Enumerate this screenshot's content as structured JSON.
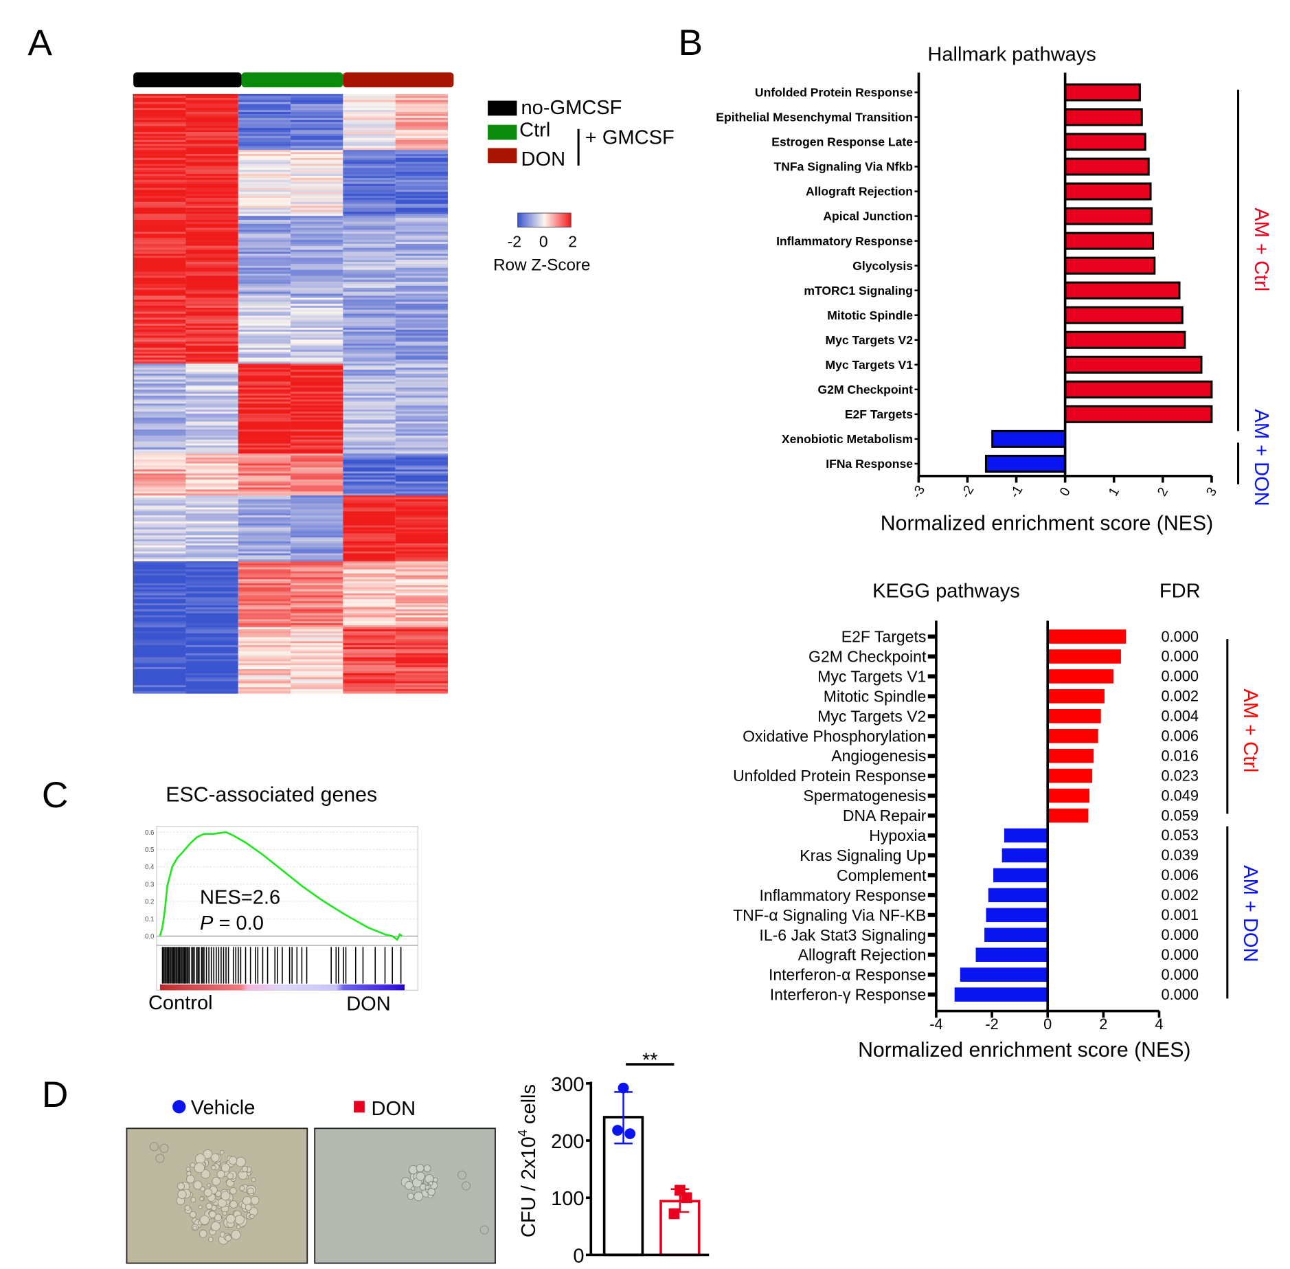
{
  "panels": {
    "a": "A",
    "b": "B",
    "c": "C",
    "d": "D"
  },
  "colors": {
    "red": "#e8001e",
    "blue": "#0a14f0",
    "black": "#000000",
    "green": "#0b8a0b",
    "darkred": "#a81400",
    "gsea_line": "#22e622"
  },
  "legend_a": {
    "groups": [
      {
        "label": "no-GMCSF",
        "color": "#000000"
      },
      {
        "label": "Ctrl",
        "color": "#0b8a0b"
      },
      {
        "label": "DON",
        "color": "#a81400"
      }
    ],
    "bracket_label": "+ GMCSF",
    "colorbar_ticks": [
      "-2",
      "0",
      "2"
    ],
    "colorbar_title": "Row Z-Score"
  },
  "chart_data": [
    {
      "type": "heatmap",
      "title": "",
      "columns": [
        "no-GMCSF",
        "no-GMCSF",
        "Ctrl",
        "Ctrl",
        "DON",
        "DON"
      ],
      "value_range": [
        -2,
        2
      ],
      "clusters": [
        {
          "rows": 28,
          "z": [
            2,
            2,
            -1.5,
            -1.5,
            0,
            0.6
          ]
        },
        {
          "rows": 33,
          "z": [
            2,
            2,
            0,
            0,
            -1.6,
            -1.6
          ]
        },
        {
          "rows": 40,
          "z": [
            2,
            2,
            -1,
            -1,
            -0.8,
            -0.8
          ]
        },
        {
          "rows": 34,
          "z": [
            1.8,
            1.8,
            -0.5,
            -0.5,
            -1,
            -1.1
          ]
        },
        {
          "rows": 45,
          "z": [
            -0.8,
            -0.5,
            2,
            2,
            -0.8,
            -0.8
          ]
        },
        {
          "rows": 21,
          "z": [
            0.6,
            0.5,
            1.1,
            1.1,
            -1.6,
            -1.6
          ]
        },
        {
          "rows": 33,
          "z": [
            -0.5,
            -0.5,
            -1,
            -1,
            2,
            2
          ]
        },
        {
          "rows": 33,
          "z": [
            -2,
            -2,
            1.1,
            1.1,
            0.5,
            0.5
          ]
        },
        {
          "rows": 33,
          "z": [
            -2,
            -2,
            0.3,
            0.3,
            1.6,
            1.6
          ]
        }
      ]
    },
    {
      "type": "bar",
      "orientation": "horizontal",
      "title": "Hallmark pathways",
      "xlabel": "Normalized enrichment score (NES)",
      "xlim": [
        -3,
        3
      ],
      "ticks": [
        -3,
        -2,
        -1,
        0,
        1,
        2,
        3
      ],
      "tick_labels": [
        "-3",
        "-2",
        "-1",
        "0",
        "1",
        "2",
        "3"
      ],
      "categories": [
        "Unfolded Protein Response",
        "Epithelial Mesenchymal Transition",
        "Estrogen Response Late",
        "TNFa Signaling Via Nfkb",
        "Allograft Rejection",
        "Apical Junction",
        "Inflammatory Response",
        "Glycolysis",
        "mTORC1 Signaling",
        "Mitotic Spindle",
        "Myc Targets V2",
        "Myc Targets V1",
        "G2M Checkpoint",
        "E2F Targets",
        "Xenobiotic Metabolism",
        "IFNa Response"
      ],
      "values": [
        1.53,
        1.57,
        1.64,
        1.71,
        1.75,
        1.77,
        1.8,
        1.83,
        2.34,
        2.4,
        2.45,
        2.79,
        3.0,
        3.0,
        -1.49,
        -1.62
      ],
      "groups": [
        {
          "label": "AM + Ctrl",
          "color": "#e8001e"
        },
        {
          "label": "AM + DON",
          "color": "#0a14f0"
        }
      ]
    },
    {
      "type": "bar",
      "orientation": "horizontal",
      "title": "KEGG pathways",
      "fdr_title": "FDR",
      "xlabel": "Normalized enrichment score (NES)",
      "xlim": [
        -4,
        4
      ],
      "ticks": [
        -4,
        -2,
        0,
        2,
        4
      ],
      "tick_labels": [
        "-4",
        "-2",
        "0",
        "2",
        "4"
      ],
      "categories": [
        "E2F Targets",
        "G2M Checkpoint",
        "Myc Targets V1",
        "Mitotic Spindle",
        "Myc Targets V2",
        "Oxidative  Phosphorylation",
        "Angiogenesis",
        "Unfolded Protein Response",
        "Spermatogenesis",
        "DNA Repair",
        "Hypoxia",
        "Kras Signaling Up",
        "Complement",
        "Inflammatory Response",
        "TNF-α Signaling Via NF-KB",
        "IL-6 Jak Stat3 Signaling",
        "Allograft Rejection",
        "Interferon-α Response",
        "Interferon-γ Response"
      ],
      "values": [
        2.81,
        2.63,
        2.36,
        2.04,
        1.91,
        1.81,
        1.65,
        1.6,
        1.5,
        1.46,
        -1.56,
        -1.64,
        -1.95,
        -2.13,
        -2.21,
        -2.27,
        -2.58,
        -3.14,
        -3.34
      ],
      "fdr": [
        "0.000",
        "0.000",
        "0.000",
        "0.002",
        "0.004",
        "0.006",
        "0.016",
        "0.023",
        "0.049",
        "0.059",
        "0.053",
        "0.039",
        "0.006",
        "0.002",
        "0.001",
        "0.000",
        "0.000",
        "0.000",
        "0.000"
      ],
      "groups": [
        {
          "label": "AM + Ctrl",
          "color": "#ff0000"
        },
        {
          "label": "AM + DON",
          "color": "#0a14f0"
        }
      ]
    },
    {
      "type": "line",
      "title": "ESC-associated genes",
      "ylim": [
        0,
        0.6
      ],
      "yticks": [
        "0.0",
        "0.1",
        "0.2",
        "0.3",
        "0.4",
        "0.5",
        "0.6"
      ],
      "x": [
        0,
        0.01,
        0.02,
        0.03,
        0.05,
        0.07,
        0.09,
        0.12,
        0.15,
        0.18,
        0.22,
        0.27,
        0.3,
        0.35,
        0.42,
        0.5,
        0.58,
        0.66,
        0.75,
        0.85,
        0.92,
        0.95,
        0.97,
        0.98,
        0.99
      ],
      "y": [
        0,
        0.05,
        0.15,
        0.29,
        0.4,
        0.45,
        0.48,
        0.53,
        0.57,
        0.59,
        0.59,
        0.6,
        0.58,
        0.54,
        0.47,
        0.38,
        0.29,
        0.21,
        0.13,
        0.05,
        0.01,
        0.0,
        -0.02,
        0.01,
        0.0
      ],
      "hits": [
        0.01,
        0.015,
        0.02,
        0.025,
        0.03,
        0.035,
        0.04,
        0.045,
        0.05,
        0.055,
        0.06,
        0.065,
        0.07,
        0.075,
        0.08,
        0.085,
        0.09,
        0.095,
        0.1,
        0.105,
        0.11,
        0.115,
        0.12,
        0.13,
        0.135,
        0.14,
        0.15,
        0.155,
        0.16,
        0.17,
        0.175,
        0.18,
        0.19,
        0.2,
        0.21,
        0.22,
        0.23,
        0.24,
        0.25,
        0.26,
        0.27,
        0.28,
        0.3,
        0.31,
        0.32,
        0.33,
        0.35,
        0.37,
        0.39,
        0.4,
        0.42,
        0.44,
        0.47,
        0.48,
        0.5,
        0.53,
        0.54,
        0.56,
        0.58,
        0.6,
        0.7,
        0.72,
        0.73,
        0.75,
        0.76,
        0.8,
        0.83,
        0.88,
        0.92,
        0.95,
        0.985
      ],
      "annotation_nes": "NES=2.6",
      "annotation_p_italic": "P",
      "annotation_p": " = 0.0",
      "left_label": "Control",
      "right_label": "DON"
    },
    {
      "type": "bar",
      "title": "",
      "ylabel": "CFU / 2x10",
      "ylabel_sup": "4",
      "ylabel_end": " cells",
      "ylim": [
        0,
        300
      ],
      "yticks": [
        "0",
        "100",
        "200",
        "300"
      ],
      "categories": [
        "Vehicle",
        "DON"
      ],
      "values": [
        241,
        94
      ],
      "errors": [
        [
          195,
          285
        ],
        [
          75,
          115
        ]
      ],
      "points": [
        [
          292,
          212,
          218
        ],
        [
          113,
          100,
          72
        ]
      ],
      "significance": "**"
    }
  ]
}
